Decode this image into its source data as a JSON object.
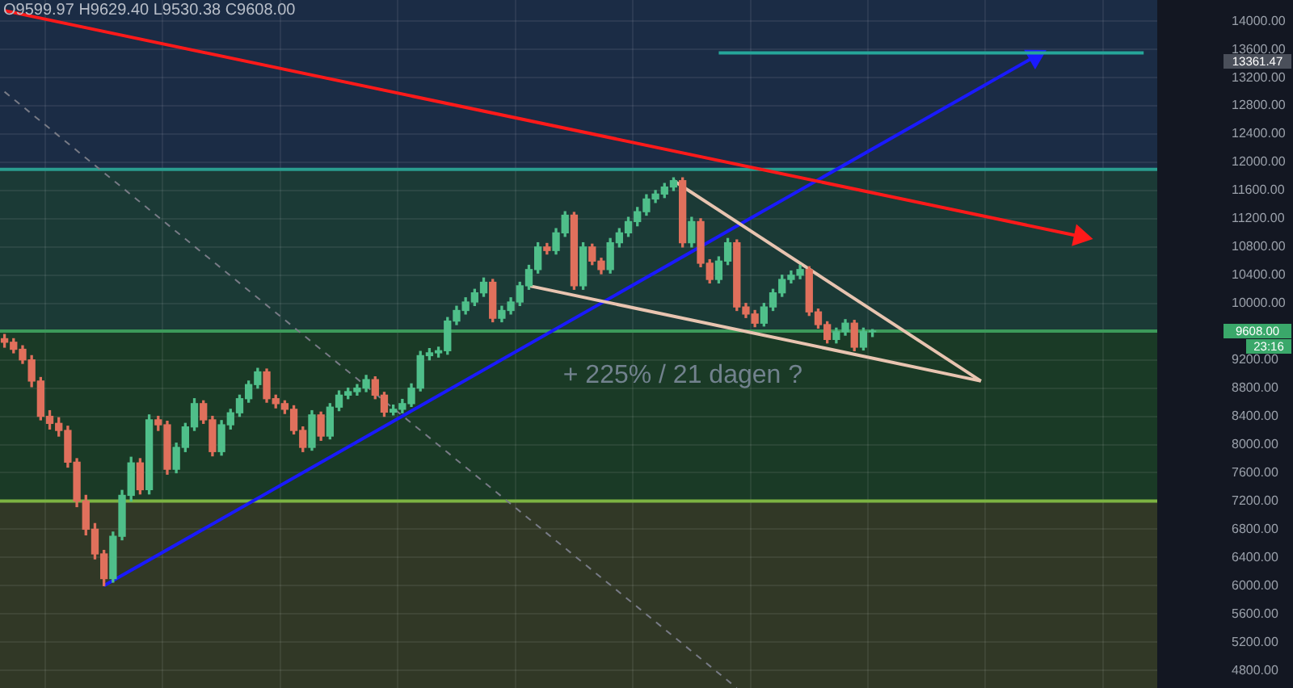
{
  "chart_data": {
    "type": "candlestick",
    "categories": [
      null,
      null,
      null,
      null,
      null,
      null,
      null,
      null,
      null,
      null,
      null,
      null,
      null,
      null,
      null,
      null,
      null,
      null,
      null,
      null,
      null,
      null,
      null,
      null,
      null,
      null,
      null,
      null,
      null,
      null,
      null,
      null,
      null,
      null,
      null,
      null,
      null,
      null,
      null,
      null,
      null,
      null,
      null,
      null,
      null,
      null,
      null,
      null,
      null,
      null,
      null,
      null,
      null,
      null,
      null,
      null,
      null,
      null,
      null,
      null,
      null,
      null,
      null,
      null,
      null,
      null,
      null,
      null,
      null,
      null,
      null,
      null,
      null,
      null,
      null,
      null,
      null,
      null,
      null,
      null,
      null,
      null,
      null,
      null,
      null,
      null,
      null,
      null,
      null,
      null,
      null,
      null,
      null,
      null,
      null,
      null,
      null,
      null,
      null,
      null,
      null,
      null,
      null,
      null,
      null,
      null,
      null,
      null,
      null,
      null,
      null,
      null,
      null,
      null,
      null,
      null,
      null,
      null,
      null,
      null,
      null,
      null,
      null,
      null,
      null,
      null,
      null,
      null
    ],
    "ohlc": [
      [
        9500,
        9560,
        9380,
        9450
      ],
      [
        9450,
        9500,
        9300,
        9350
      ],
      [
        9350,
        9400,
        9150,
        9200
      ],
      [
        9200,
        9260,
        8820,
        8900
      ],
      [
        8900,
        8950,
        8350,
        8400
      ],
      [
        8400,
        8480,
        8220,
        8300
      ],
      [
        8300,
        8380,
        8120,
        8200
      ],
      [
        8200,
        8260,
        7680,
        7750
      ],
      [
        7750,
        7800,
        7120,
        7200
      ],
      [
        7200,
        7280,
        6720,
        6800
      ],
      [
        6800,
        6880,
        6380,
        6450
      ],
      [
        6450,
        6500,
        6000,
        6100
      ],
      [
        6100,
        6760,
        6050,
        6700
      ],
      [
        6700,
        7350,
        6650,
        7280
      ],
      [
        7280,
        7820,
        7200,
        7740
      ],
      [
        7740,
        7800,
        7300,
        7360
      ],
      [
        7360,
        8420,
        7300,
        8350
      ],
      [
        8350,
        8400,
        8200,
        8280
      ],
      [
        8280,
        8330,
        7580,
        7650
      ],
      [
        7650,
        8020,
        7600,
        7960
      ],
      [
        7960,
        8300,
        7900,
        8250
      ],
      [
        8250,
        8650,
        8200,
        8580
      ],
      [
        8580,
        8620,
        8300,
        8350
      ],
      [
        8350,
        8400,
        7840,
        7900
      ],
      [
        7900,
        8340,
        7850,
        8280
      ],
      [
        8280,
        8500,
        8220,
        8450
      ],
      [
        8450,
        8700,
        8400,
        8650
      ],
      [
        8650,
        8900,
        8600,
        8850
      ],
      [
        8850,
        9080,
        8800,
        9030
      ],
      [
        9030,
        9070,
        8600,
        8650
      ],
      [
        8650,
        8700,
        8520,
        8580
      ],
      [
        8580,
        8620,
        8440,
        8500
      ],
      [
        8500,
        8550,
        8150,
        8200
      ],
      [
        8200,
        8250,
        7900,
        7960
      ],
      [
        7960,
        8480,
        7920,
        8420
      ],
      [
        8420,
        8460,
        8060,
        8120
      ],
      [
        8120,
        8580,
        8080,
        8530
      ],
      [
        8530,
        8760,
        8480,
        8700
      ],
      [
        8700,
        8800,
        8650,
        8750
      ],
      [
        8750,
        8850,
        8700,
        8800
      ],
      [
        8800,
        8980,
        8750,
        8920
      ],
      [
        8920,
        8960,
        8650,
        8700
      ],
      [
        8700,
        8740,
        8400,
        8460
      ],
      [
        8460,
        8560,
        8420,
        8500
      ],
      [
        8500,
        8640,
        8450,
        8580
      ],
      [
        8580,
        8860,
        8540,
        8800
      ],
      [
        8800,
        9320,
        8760,
        9260
      ],
      [
        9260,
        9360,
        9200,
        9300
      ],
      [
        9300,
        9380,
        9240,
        9330
      ],
      [
        9330,
        9800,
        9280,
        9750
      ],
      [
        9750,
        9960,
        9700,
        9900
      ],
      [
        9900,
        10080,
        9850,
        10020
      ],
      [
        10020,
        10200,
        9970,
        10150
      ],
      [
        10150,
        10360,
        10100,
        10300
      ],
      [
        10300,
        10340,
        9740,
        9790
      ],
      [
        9790,
        9960,
        9740,
        9900
      ],
      [
        9900,
        10080,
        9850,
        10020
      ],
      [
        10020,
        10300,
        9970,
        10250
      ],
      [
        10250,
        10540,
        10200,
        10480
      ],
      [
        10480,
        10860,
        10430,
        10800
      ],
      [
        10800,
        10850,
        10700,
        10750
      ],
      [
        10750,
        11060,
        10700,
        11000
      ],
      [
        11000,
        11300,
        10950,
        11250
      ],
      [
        11250,
        11290,
        10200,
        10250
      ],
      [
        10250,
        10860,
        10200,
        10800
      ],
      [
        10800,
        10840,
        10550,
        10600
      ],
      [
        10600,
        10640,
        10420,
        10480
      ],
      [
        10480,
        10920,
        10430,
        10860
      ],
      [
        10860,
        11060,
        10800,
        11000
      ],
      [
        11000,
        11220,
        10950,
        11160
      ],
      [
        11160,
        11360,
        11100,
        11300
      ],
      [
        11300,
        11540,
        11250,
        11480
      ],
      [
        11480,
        11600,
        11430,
        11550
      ],
      [
        11550,
        11700,
        11500,
        11650
      ],
      [
        11650,
        11780,
        11600,
        11740
      ],
      [
        11740,
        11780,
        10800,
        10860
      ],
      [
        10860,
        11220,
        10800,
        11160
      ],
      [
        11160,
        11200,
        10520,
        10570
      ],
      [
        10570,
        10620,
        10290,
        10340
      ],
      [
        10340,
        10660,
        10290,
        10600
      ],
      [
        10600,
        10920,
        10550,
        10860
      ],
      [
        10860,
        10900,
        9900,
        9950
      ],
      [
        9950,
        10000,
        9800,
        9850
      ],
      [
        9850,
        9900,
        9670,
        9720
      ],
      [
        9720,
        10000,
        9680,
        9950
      ],
      [
        9950,
        10200,
        9900,
        10150
      ],
      [
        10150,
        10400,
        10100,
        10340
      ],
      [
        10340,
        10460,
        10290,
        10400
      ],
      [
        10400,
        10540,
        10350,
        10480
      ],
      [
        10480,
        10520,
        9830,
        9880
      ],
      [
        9880,
        9920,
        9650,
        9700
      ],
      [
        9700,
        9740,
        9440,
        9490
      ],
      [
        9490,
        9650,
        9440,
        9600
      ],
      [
        9600,
        9770,
        9550,
        9720
      ],
      [
        9720,
        9760,
        9330,
        9380
      ],
      [
        9380,
        9650,
        9340,
        9600
      ],
      [
        9599.97,
        9629.4,
        9530.38,
        9608.0
      ],
      null,
      null,
      null,
      null,
      null,
      null,
      null,
      null,
      null,
      null,
      null,
      null,
      null,
      null,
      null,
      null,
      null,
      null,
      null,
      null,
      null,
      null,
      null,
      null,
      null,
      null,
      null,
      null,
      null,
      null,
      null
    ],
    "series": [
      {
        "type": "line",
        "color": "#787b86",
        "line_style": "dashed",
        "marker": "none",
        "values": [
          13000,
          null,
          null,
          null,
          null,
          null,
          null,
          null,
          null,
          null,
          null,
          null,
          null,
          null,
          null,
          null,
          null,
          null,
          null,
          null,
          null,
          null,
          null,
          null,
          null,
          null,
          null,
          null,
          null,
          null,
          null,
          null,
          null,
          null,
          null,
          null,
          null,
          null,
          null,
          null,
          null,
          null,
          null,
          null,
          null,
          null,
          null,
          null,
          null,
          null,
          null,
          null,
          null,
          null,
          null,
          null,
          null,
          null,
          null,
          null,
          null,
          null,
          null,
          null,
          null,
          null,
          null,
          null,
          null,
          null,
          null,
          null,
          null,
          null,
          null,
          null,
          null,
          null,
          null,
          null,
          null,
          4550,
          null,
          null,
          null,
          null,
          null,
          null,
          null,
          null,
          null,
          null,
          null,
          null,
          null,
          null,
          null,
          null,
          null,
          null,
          null,
          null,
          null,
          null,
          null,
          null,
          null,
          null,
          null,
          null,
          null,
          null,
          null,
          null,
          null,
          null,
          null,
          null,
          null,
          null,
          null,
          null,
          null,
          null,
          null,
          null,
          null,
          null
        ]
      },
      {
        "type": "line",
        "color": "#26a69a",
        "line_style": "solid",
        "marker": "none",
        "values": [
          null,
          null,
          null,
          null,
          null,
          null,
          null,
          null,
          null,
          null,
          null,
          null,
          null,
          null,
          null,
          null,
          null,
          null,
          null,
          null,
          null,
          null,
          null,
          null,
          null,
          null,
          null,
          null,
          null,
          null,
          null,
          null,
          null,
          null,
          null,
          null,
          null,
          null,
          null,
          null,
          null,
          null,
          null,
          null,
          null,
          null,
          null,
          null,
          null,
          null,
          null,
          null,
          null,
          null,
          null,
          null,
          null,
          null,
          null,
          null,
          null,
          null,
          null,
          null,
          null,
          null,
          null,
          null,
          null,
          null,
          null,
          null,
          null,
          null,
          null,
          null,
          null,
          null,
          null,
          13550,
          null,
          null,
          null,
          null,
          null,
          null,
          null,
          null,
          null,
          null,
          null,
          null,
          null,
          null,
          null,
          null,
          null,
          null,
          null,
          null,
          null,
          null,
          null,
          null,
          null,
          null,
          null,
          null,
          null,
          null,
          null,
          null,
          null,
          null,
          null,
          null,
          null,
          null,
          null,
          null,
          null,
          null,
          null,
          null,
          null,
          null,
          13550,
          null
        ]
      },
      {
        "type": "line",
        "color": "#e8c4b0",
        "line_style": "solid",
        "marker": "none",
        "values": [
          null,
          null,
          null,
          null,
          null,
          null,
          null,
          null,
          null,
          null,
          null,
          null,
          null,
          null,
          null,
          null,
          null,
          null,
          null,
          null,
          null,
          null,
          null,
          null,
          null,
          null,
          null,
          null,
          null,
          null,
          null,
          null,
          null,
          null,
          null,
          null,
          null,
          null,
          null,
          null,
          null,
          null,
          null,
          null,
          null,
          null,
          null,
          null,
          null,
          null,
          null,
          null,
          null,
          null,
          null,
          null,
          null,
          null,
          null,
          null,
          null,
          null,
          null,
          null,
          null,
          null,
          null,
          null,
          null,
          null,
          null,
          null,
          null,
          null,
          11740,
          null,
          null,
          null,
          null,
          null,
          null,
          null,
          null,
          null,
          null,
          null,
          null,
          null,
          null,
          null,
          null,
          null,
          null,
          null,
          null,
          null,
          null,
          null,
          null,
          null,
          null,
          null,
          null,
          null,
          null,
          null,
          null,
          null,
          8900,
          null,
          null,
          null,
          null,
          null,
          null,
          null,
          null,
          null,
          null,
          null,
          null,
          null,
          null,
          null,
          null,
          null,
          null,
          null
        ]
      },
      {
        "type": "line",
        "color": "#e8c4b0",
        "line_style": "solid",
        "marker": "none",
        "values": [
          null,
          null,
          null,
          null,
          null,
          null,
          null,
          null,
          null,
          null,
          null,
          null,
          null,
          null,
          null,
          null,
          null,
          null,
          null,
          null,
          null,
          null,
          null,
          null,
          null,
          null,
          null,
          null,
          null,
          null,
          null,
          null,
          null,
          null,
          null,
          null,
          null,
          null,
          null,
          null,
          null,
          null,
          null,
          null,
          null,
          null,
          null,
          null,
          null,
          null,
          null,
          null,
          null,
          null,
          null,
          null,
          null,
          null,
          10250,
          null,
          null,
          null,
          null,
          null,
          null,
          null,
          null,
          null,
          null,
          null,
          null,
          null,
          null,
          null,
          null,
          null,
          null,
          null,
          null,
          null,
          null,
          null,
          null,
          null,
          null,
          null,
          null,
          null,
          null,
          null,
          null,
          null,
          null,
          null,
          null,
          null,
          null,
          null,
          null,
          null,
          null,
          null,
          null,
          null,
          null,
          null,
          null,
          null,
          8900,
          null,
          null,
          null,
          null,
          null,
          null,
          null,
          null,
          null,
          null,
          null,
          null,
          null,
          null,
          null,
          null,
          null,
          null,
          null
        ]
      },
      {
        "type": "line",
        "color": "#ff1a1a",
        "line_style": "solid",
        "marker": "triangle",
        "values": [
          14150,
          null,
          null,
          null,
          null,
          null,
          null,
          null,
          null,
          null,
          null,
          null,
          null,
          null,
          null,
          null,
          null,
          null,
          null,
          null,
          null,
          null,
          null,
          null,
          null,
          null,
          null,
          null,
          null,
          null,
          null,
          null,
          null,
          null,
          null,
          null,
          null,
          null,
          null,
          null,
          null,
          null,
          null,
          null,
          null,
          null,
          null,
          null,
          null,
          null,
          null,
          null,
          null,
          null,
          null,
          null,
          null,
          null,
          null,
          null,
          null,
          null,
          null,
          null,
          null,
          null,
          null,
          null,
          null,
          null,
          null,
          null,
          null,
          null,
          null,
          null,
          null,
          null,
          null,
          null,
          null,
          null,
          null,
          null,
          null,
          null,
          null,
          null,
          null,
          null,
          null,
          null,
          null,
          null,
          null,
          null,
          null,
          null,
          null,
          null,
          null,
          null,
          null,
          null,
          null,
          null,
          null,
          null,
          null,
          null,
          null,
          null,
          null,
          null,
          null,
          null,
          null,
          null,
          null,
          10950,
          null,
          null,
          null,
          null,
          null,
          null,
          null,
          null
        ]
      },
      {
        "type": "line",
        "color": "#1a1aff",
        "line_style": "solid",
        "marker": "triangle",
        "values": [
          null,
          null,
          null,
          null,
          null,
          null,
          null,
          null,
          null,
          null,
          null,
          6000,
          null,
          null,
          null,
          null,
          null,
          null,
          null,
          null,
          null,
          null,
          null,
          null,
          null,
          null,
          null,
          null,
          null,
          null,
          null,
          null,
          null,
          null,
          null,
          null,
          null,
          null,
          null,
          null,
          null,
          null,
          null,
          null,
          null,
          null,
          null,
          null,
          null,
          null,
          null,
          null,
          null,
          null,
          null,
          null,
          null,
          null,
          null,
          null,
          null,
          null,
          null,
          null,
          null,
          null,
          null,
          null,
          null,
          null,
          null,
          null,
          null,
          null,
          null,
          null,
          null,
          null,
          null,
          null,
          null,
          null,
          null,
          null,
          null,
          null,
          null,
          null,
          null,
          null,
          null,
          null,
          null,
          null,
          null,
          null,
          null,
          null,
          null,
          null,
          null,
          null,
          null,
          null,
          null,
          null,
          null,
          null,
          null,
          null,
          null,
          null,
          null,
          null,
          13500,
          null,
          null,
          null,
          null,
          null,
          null,
          null,
          null,
          null,
          null,
          null,
          null,
          null
        ]
      }
    ],
    "ylim": [
      4550,
      14300
    ],
    "yticks": [
      {
        "value": 4800,
        "label": "4800.00"
      },
      {
        "value": 5200,
        "label": "5200.00"
      },
      {
        "value": 5600,
        "label": "5600.00"
      },
      {
        "value": 6000,
        "label": "6000.00"
      },
      {
        "value": 6400,
        "label": "6400.00"
      },
      {
        "value": 6800,
        "label": "6800.00"
      },
      {
        "value": 7200,
        "label": "7200.00"
      },
      {
        "value": 7600,
        "label": "7600.00"
      },
      {
        "value": 8000,
        "label": "8000.00"
      },
      {
        "value": 8400,
        "label": "8400.00"
      },
      {
        "value": 8800,
        "label": "8800.00"
      },
      {
        "value": 9200,
        "label": "9200.00"
      },
      {
        "value": 9600,
        "label": null
      },
      {
        "value": 10000,
        "label": "10000.00"
      },
      {
        "value": 10400,
        "label": "10400.00"
      },
      {
        "value": 10800,
        "label": "10800.00"
      },
      {
        "value": 11200,
        "label": "11200.00"
      },
      {
        "value": 11600,
        "label": "11600.00"
      },
      {
        "value": 12000,
        "label": "12000.00"
      },
      {
        "value": 12400,
        "label": "12400.00"
      },
      {
        "value": 12800,
        "label": "12800.00"
      },
      {
        "value": 13200,
        "label": "13200.00"
      },
      {
        "value": 13600,
        "label": "13600.00"
      },
      {
        "value": 14000,
        "label": "14000.00"
      }
    ],
    "bands": [
      {
        "axis": "y",
        "from": 11900,
        "to": 14300,
        "color": "#1b2c45"
      },
      {
        "axis": "y",
        "from": 9608,
        "to": 11900,
        "color": "#1b3a36"
      },
      {
        "axis": "y",
        "from": 7200,
        "to": 9608,
        "color": "#1a3a26"
      },
      {
        "axis": "y",
        "from": 4550,
        "to": 7200,
        "color": "#313826"
      }
    ],
    "ref_lines": [
      {
        "axis": "y",
        "value": 11900,
        "color": "#2a9d8f"
      },
      {
        "axis": "y",
        "value": 9608,
        "color": "#3c9a5a"
      },
      {
        "axis": "y",
        "value": 7200,
        "color": "#7cb342"
      }
    ],
    "annotations": [
      "O9599.97 H9629.40 L9530.38 C9608.00",
      "+ 225% / 21 dagen ?",
      "9608.00",
      "23:16",
      "13361.47"
    ],
    "grid": true,
    "legend": false,
    "tick_labels": "y"
  }
}
